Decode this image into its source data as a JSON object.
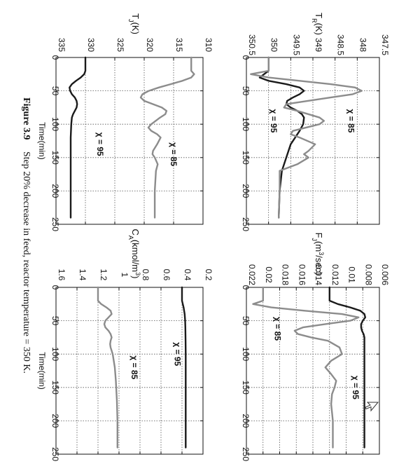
{
  "caption": {
    "label": "Figure 3.9",
    "text": "Step 20% decrease in feed, reactor temperature = 350 K."
  },
  "chart_data": [
    {
      "id": "TR",
      "type": "line",
      "ylabel": "T_R(K)",
      "xlabel": "",
      "xlim": [
        0,
        250
      ],
      "ylim": [
        347.5,
        350.5
      ],
      "xticks": [
        0,
        50,
        100,
        150,
        200,
        250
      ],
      "yticks": [
        "347.5",
        "348",
        "348.5",
        "349",
        "349.5",
        "350",
        "350.5"
      ],
      "grid": true,
      "series": [
        {
          "name": "χ = 95",
          "color": "#1a1a1a",
          "x": [
            0,
            20,
            30,
            35,
            40,
            45,
            50,
            55,
            60,
            65,
            70,
            75,
            80,
            85,
            90,
            100,
            110,
            120,
            130,
            150,
            170,
            200,
            240
          ],
          "y": [
            350,
            350,
            350.2,
            350,
            349.6,
            349.3,
            349.2,
            349.3,
            349.45,
            349.58,
            349.6,
            349.5,
            349.35,
            349.25,
            349.2,
            349.22,
            349.3,
            349.4,
            349.5,
            349.6,
            349.7,
            349.75,
            349.77
          ]
        },
        {
          "name": "χ = 85",
          "color": "#8c8c8c",
          "x": [
            0,
            20,
            25,
            30,
            35,
            40,
            45,
            50,
            55,
            60,
            70,
            75,
            80,
            90,
            95,
            100,
            110,
            115,
            120,
            130,
            140,
            145,
            150,
            160,
            170,
            200,
            240
          ],
          "y": [
            350,
            350,
            350.4,
            350,
            349.3,
            348.6,
            348.05,
            347.9,
            348.1,
            348.6,
            349.6,
            349.65,
            349.35,
            348.85,
            348.75,
            348.85,
            349.45,
            349.5,
            349.3,
            348.95,
            349.1,
            349.2,
            349.1,
            349.35,
            349.75,
            349.75,
            349.77
          ]
        }
      ],
      "annotations": [
        {
          "text": "χ = 95",
          "x": 95,
          "y": 349.95
        },
        {
          "text": "χ = 85",
          "x": 95,
          "y": 348.2
        }
      ]
    },
    {
      "id": "FJ",
      "type": "line",
      "ylabel": "F_J(m^3/sec)",
      "xlabel": "",
      "xlim": [
        0,
        250
      ],
      "ylim": [
        0.006,
        0.022
      ],
      "xticks": [
        0,
        50,
        100,
        150,
        200,
        250
      ],
      "yticks": [
        "0.006",
        "0.008",
        "0.01",
        "0.012",
        "0.014",
        "0.016",
        "0.018",
        "0.02",
        "0.022"
      ],
      "grid": true,
      "series": [
        {
          "name": "χ = 95",
          "color": "#1a1a1a",
          "x": [
            0,
            20,
            25,
            30,
            35,
            40,
            45,
            50,
            55,
            60,
            65,
            70,
            75,
            80,
            90,
            100,
            120,
            150,
            200,
            240
          ],
          "y": [
            0.012,
            0.012,
            0.011,
            0.0095,
            0.0083,
            0.0078,
            0.0077,
            0.008,
            0.0082,
            0.0082,
            0.0081,
            0.0079,
            0.0078,
            0.0078,
            0.0078,
            0.0078,
            0.0078,
            0.0078,
            0.0078,
            0.0078
          ]
        },
        {
          "name": "χ = 85",
          "color": "#8c8c8c",
          "x": [
            0,
            20,
            25,
            30,
            35,
            40,
            45,
            50,
            55,
            60,
            65,
            70,
            75,
            80,
            90,
            100,
            110,
            120,
            130,
            140,
            150,
            160,
            175,
            200,
            240
          ],
          "y": [
            0.02,
            0.02,
            0.0212,
            0.019,
            0.015,
            0.0105,
            0.0085,
            0.0095,
            0.0125,
            0.0152,
            0.0162,
            0.0158,
            0.0142,
            0.0122,
            0.0108,
            0.0105,
            0.0118,
            0.0125,
            0.0118,
            0.0112,
            0.0114,
            0.0117,
            0.0118,
            0.0116,
            0.0116
          ]
        }
      ],
      "annotations": [
        {
          "text": "χ = 85",
          "x": 62,
          "y": 0.0186
        },
        {
          "text": "χ = 95",
          "x": 150,
          "y": 0.0092
        }
      ]
    },
    {
      "id": "TJ",
      "type": "line",
      "ylabel": "T_J(K)",
      "xlabel": "Time(min)",
      "xlim": [
        0,
        250
      ],
      "ylim": [
        310,
        335
      ],
      "xticks": [
        0,
        50,
        100,
        150,
        200,
        250
      ],
      "yticks": [
        "310",
        "315",
        "320",
        "325",
        "330",
        "335"
      ],
      "grid": true,
      "series": [
        {
          "name": "χ = 95",
          "color": "#1a1a1a",
          "x": [
            0,
            20,
            25,
            30,
            35,
            40,
            45,
            50,
            55,
            60,
            65,
            70,
            75,
            80,
            85,
            90,
            100,
            120,
            150,
            200,
            240
          ],
          "y": [
            330,
            330,
            330.2,
            330.8,
            331.6,
            332.3,
            332.7,
            332.6,
            332.3,
            331.8,
            331.5,
            331.4,
            331.5,
            331.8,
            332.1,
            332.3,
            332.4,
            332.5,
            332.5,
            332.5,
            332.5
          ]
        },
        {
          "name": "χ = 85",
          "color": "#8c8c8c",
          "x": [
            0,
            20,
            25,
            30,
            35,
            40,
            45,
            50,
            55,
            60,
            65,
            70,
            75,
            80,
            85,
            90,
            100,
            105,
            110,
            115,
            120,
            130,
            140,
            145,
            150,
            160,
            170,
            200,
            240
          ],
          "y": [
            312,
            312,
            311.5,
            312,
            313.5,
            315.5,
            317.5,
            319.2,
            320.3,
            320.6,
            320,
            318.5,
            317,
            316.2,
            316.4,
            317.3,
            318.8,
            319.3,
            318.8,
            317.8,
            317.2,
            317.8,
            318.5,
            318.6,
            318.2,
            317.7,
            318,
            318.2,
            318.2
          ]
        }
      ],
      "annotations": [
        {
          "text": "χ = 95",
          "x": 130,
          "y": 328
        },
        {
          "text": "χ = 85",
          "x": 145,
          "y": 315.5
        }
      ]
    },
    {
      "id": "CA",
      "type": "line",
      "ylabel": "C_A(kmol/m^3)",
      "xlabel": "Time(min)",
      "xlim": [
        0,
        250
      ],
      "ylim": [
        0.2,
        1.6
      ],
      "xticks": [
        0,
        50,
        100,
        150,
        200,
        250
      ],
      "yticks": [
        "0.2",
        "0.4",
        "0.6",
        "0.8",
        "1",
        "1.2",
        "1.4",
        "1.6"
      ],
      "grid": true,
      "series": [
        {
          "name": "χ = 95",
          "color": "#1a1a1a",
          "x": [
            0,
            20,
            30,
            40,
            50,
            60,
            80,
            100,
            130,
            160,
            200,
            240
          ],
          "y": [
            0.4,
            0.4,
            0.385,
            0.375,
            0.37,
            0.368,
            0.366,
            0.365,
            0.365,
            0.365,
            0.365,
            0.365
          ]
        },
        {
          "name": "χ = 85",
          "color": "#8c8c8c",
          "x": [
            0,
            20,
            25,
            30,
            35,
            40,
            45,
            50,
            55,
            60,
            65,
            70,
            75,
            80,
            85,
            90,
            100,
            110,
            120,
            140,
            170,
            200,
            240
          ],
          "y": [
            1.2,
            1.2,
            1.17,
            1.12,
            1.08,
            1.07,
            1.1,
            1.13,
            1.14,
            1.13,
            1.1,
            1.08,
            1.07,
            1.08,
            1.085,
            1.08,
            1.06,
            1.05,
            1.04,
            1.03,
            1.02,
            1.015,
            1.015
          ]
        }
      ],
      "annotations": [
        {
          "text": "χ = 85",
          "x": 120,
          "y": 0.88
        },
        {
          "text": "χ = 95",
          "x": 100,
          "y": 0.47
        }
      ]
    }
  ]
}
